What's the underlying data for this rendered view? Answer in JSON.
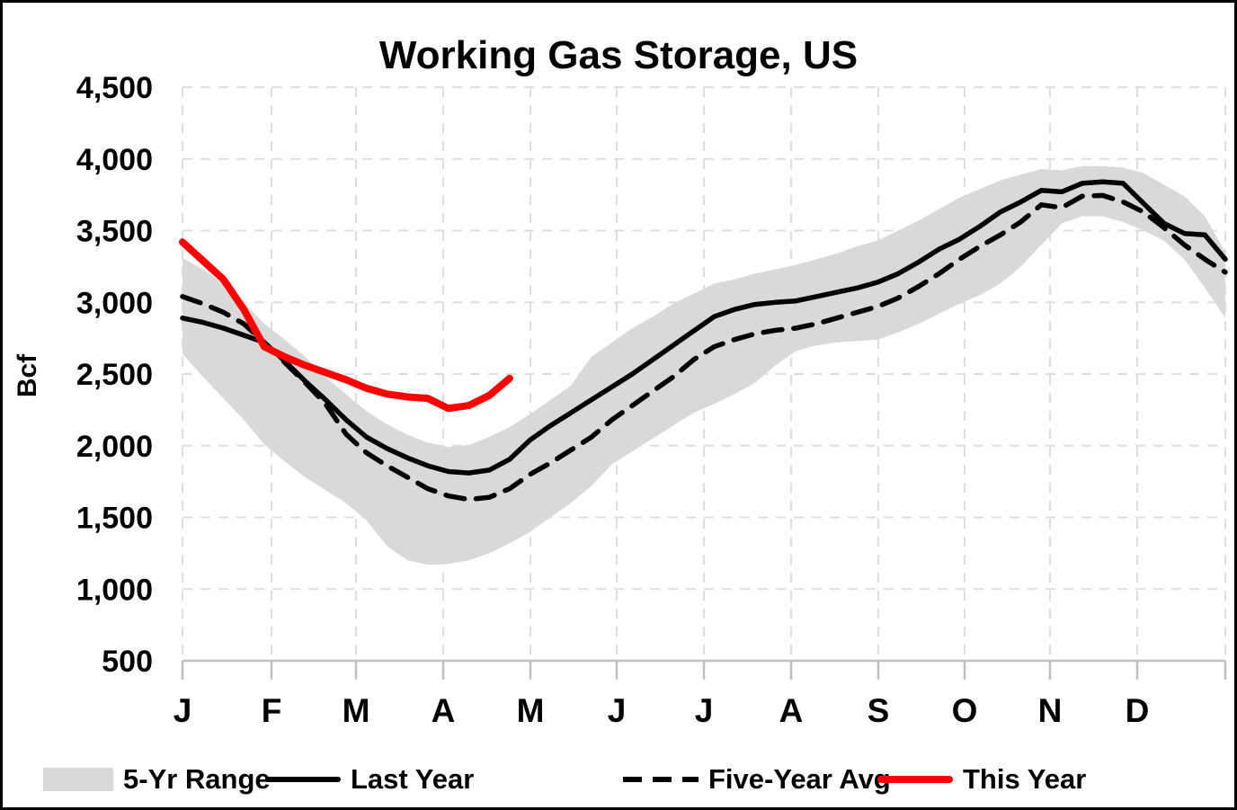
{
  "title": "Working Gas Storage, US",
  "y_axis": {
    "label": "Bcf"
  },
  "chart_data": {
    "type": "line",
    "title": "Working Gas Storage, US",
    "xlabel": "",
    "ylabel": "Bcf",
    "ylim": [
      500,
      4500
    ],
    "y_tick_step": 500,
    "y_tick_labels": [
      "4,500",
      "4,000",
      "3,500",
      "3,000",
      "2,500",
      "2,000",
      "1,500",
      "1,000",
      "500"
    ],
    "x_unit": "week-of-year",
    "x_range": [
      1,
      52
    ],
    "x_tick_labels": [
      "J",
      "F",
      "M",
      "A",
      "M",
      "J",
      "J",
      "A",
      "S",
      "O",
      "N",
      "D"
    ],
    "grid": "dashed",
    "legend_position": "bottom",
    "colors": {
      "band": "#d9d9d9",
      "line": "#000000",
      "this_year": "#ff0000",
      "gridline": "#dedede",
      "axis": "#bfbfbf"
    },
    "series": [
      {
        "name": "5-Yr Range",
        "type": "band",
        "color": "#d9d9d9",
        "upper": [
          3310,
          3230,
          3130,
          3000,
          2850,
          2740,
          2620,
          2480,
          2360,
          2240,
          2150,
          2075,
          2020,
          1990,
          2005,
          2060,
          2130,
          2220,
          2320,
          2420,
          2620,
          2720,
          2820,
          2900,
          2990,
          3060,
          3130,
          3160,
          3200,
          3230,
          3260,
          3300,
          3340,
          3390,
          3430,
          3500,
          3570,
          3650,
          3730,
          3790,
          3850,
          3890,
          3930,
          3920,
          3950,
          3950,
          3940,
          3900,
          3820,
          3740,
          3600,
          3350
        ],
        "lower": [
          2640,
          2480,
          2330,
          2180,
          2010,
          1890,
          1780,
          1690,
          1600,
          1480,
          1300,
          1200,
          1170,
          1175,
          1200,
          1250,
          1320,
          1400,
          1500,
          1600,
          1720,
          1870,
          1960,
          2050,
          2140,
          2230,
          2290,
          2360,
          2440,
          2560,
          2660,
          2700,
          2720,
          2730,
          2740,
          2790,
          2850,
          2920,
          2990,
          3050,
          3130,
          3250,
          3400,
          3550,
          3600,
          3600,
          3560,
          3500,
          3430,
          3300,
          3100,
          2890
        ]
      },
      {
        "name": "Last Year",
        "type": "line",
        "style": "solid",
        "color": "#000000",
        "values": [
          2890,
          2860,
          2820,
          2770,
          2720,
          2590,
          2450,
          2320,
          2180,
          2060,
          1980,
          1915,
          1860,
          1820,
          1810,
          1830,
          1905,
          2040,
          2140,
          2230,
          2320,
          2410,
          2500,
          2600,
          2700,
          2800,
          2900,
          2950,
          2985,
          3000,
          3010,
          3040,
          3070,
          3100,
          3140,
          3200,
          3280,
          3370,
          3440,
          3530,
          3630,
          3700,
          3780,
          3770,
          3830,
          3840,
          3830,
          3690,
          3550,
          3480,
          3470,
          3300
        ]
      },
      {
        "name": "Five-Year Avg",
        "type": "line",
        "style": "dashed",
        "color": "#000000",
        "values": [
          3040,
          2990,
          2930,
          2850,
          2720,
          2580,
          2440,
          2290,
          2080,
          1950,
          1860,
          1780,
          1700,
          1650,
          1625,
          1640,
          1700,
          1800,
          1880,
          1970,
          2060,
          2180,
          2280,
          2380,
          2480,
          2600,
          2690,
          2740,
          2780,
          2805,
          2820,
          2850,
          2890,
          2930,
          2970,
          3030,
          3110,
          3200,
          3300,
          3390,
          3470,
          3560,
          3680,
          3660,
          3740,
          3745,
          3700,
          3630,
          3520,
          3400,
          3300,
          3210
        ]
      },
      {
        "name": "This Year",
        "type": "line",
        "style": "thick",
        "color": "#ff0000",
        "values": [
          3420,
          3290,
          3160,
          2950,
          2690,
          2620,
          2560,
          2510,
          2460,
          2400,
          2360,
          2340,
          2330,
          2260,
          2280,
          2350,
          2470
        ]
      }
    ]
  }
}
